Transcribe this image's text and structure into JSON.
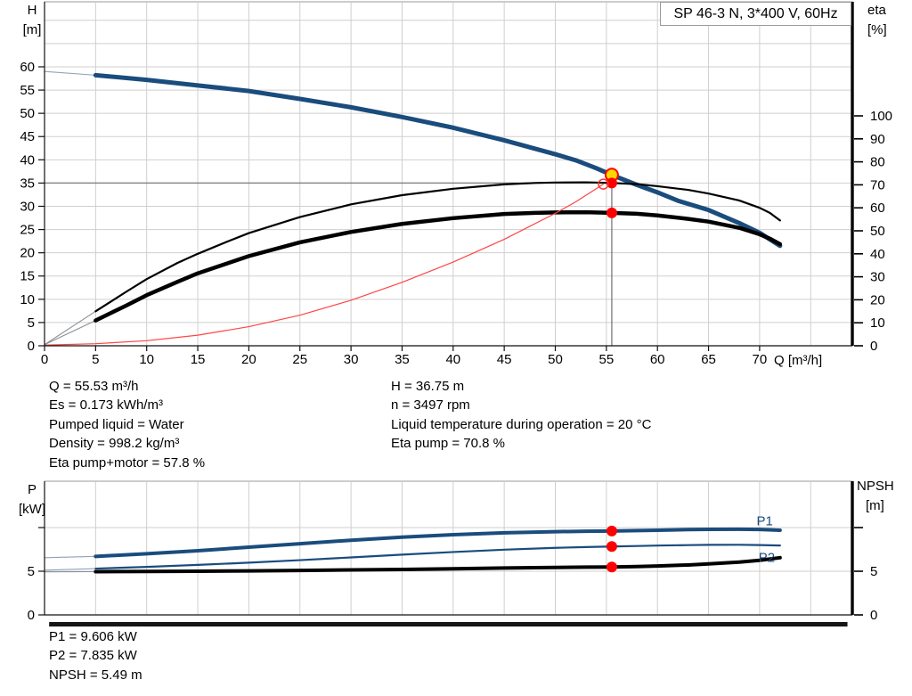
{
  "title_box": "SP 46-3 N, 3*400 V, 60Hz",
  "axis_display": {
    "h": "H",
    "h_unit": "[m]",
    "eta": "eta",
    "eta_unit": "[%]",
    "q": "Q [m³/h]",
    "p": "P",
    "p_unit": "[kW]",
    "npsh": "NPSH",
    "npsh_unit": "[m]"
  },
  "info_top_left": [
    "Q = 55.53 m³/h",
    "Es = 0.173 kWh/m³",
    "Pumped liquid = Water",
    "Density = 998.2 kg/m³",
    "Eta pump+motor = 57.8 %"
  ],
  "info_top_right": [
    "H = 36.75 m",
    "n = 3497 rpm",
    "Liquid temperature during operation = 20 °C",
    "Eta pump = 70.8 %"
  ],
  "info_bottom": [
    "P1 = 9.606 kW",
    "P2 = 7.835 kW",
    "NPSH = 5.49 m"
  ],
  "colors": {
    "curve_blue": "#1a4c7d",
    "curve_black": "#000000",
    "curve_red": "#ff4444",
    "marker_red": "#ff0000",
    "ring_red": "#ff3333",
    "duty_yellow": "#ffd700",
    "grid": "#cfcfcf",
    "crosshair": "#707070",
    "lead_gray": "#8a8f96",
    "lead_blue": "#8da3b8",
    "frame": "#9a9a9a"
  },
  "chart_data": [
    {
      "type": "line",
      "name": "hq-eta-chart",
      "title": "SP 46-3 N, 3*400 V, 60Hz",
      "xlabel": "Q [m³/h]",
      "ylabel_left": "H [m]",
      "ylabel_right": "eta [%]",
      "xlim": [
        0,
        79
      ],
      "ylim_left": [
        0,
        74
      ],
      "ylim_right": [
        0,
        100
      ],
      "grid": true,
      "x_ticks": [
        0,
        5,
        10,
        15,
        20,
        25,
        30,
        35,
        40,
        45,
        50,
        55,
        60,
        65,
        70
      ],
      "grid_x": [
        5,
        10,
        15,
        20,
        25,
        30,
        35,
        40,
        45,
        50,
        55,
        60,
        65,
        70,
        75
      ],
      "y_ticks_left": [
        0,
        5,
        10,
        15,
        20,
        25,
        30,
        35,
        40,
        45,
        50,
        55,
        60
      ],
      "y_ticks_right": [
        0,
        10,
        20,
        30,
        40,
        50,
        60,
        70,
        80,
        90,
        100
      ],
      "grid_y_left": [
        5,
        10,
        15,
        20,
        25,
        30,
        35,
        40,
        45,
        50,
        55,
        60,
        65,
        70
      ],
      "duty_point": {
        "Q": 55.53,
        "H": 36.75,
        "eta_pump": 70.8,
        "eta_pump_motor": 57.8,
        "Es": 0.173
      },
      "crosshair": {
        "q": 55.53,
        "h": 36.75,
        "eta": 70.8
      },
      "series": [
        {
          "name": "H pump curve",
          "dn": "h-curve",
          "axis": "left",
          "color_key": "curve_blue",
          "width": 5,
          "lead": [
            [
              0,
              59
            ],
            [
              5,
              58.2
            ]
          ],
          "points": [
            [
              5,
              58.2
            ],
            [
              10,
              57.2
            ],
            [
              15,
              56.0
            ],
            [
              20,
              54.8
            ],
            [
              25,
              53.1
            ],
            [
              30,
              51.3
            ],
            [
              35,
              49.2
            ],
            [
              40,
              46.9
            ],
            [
              45,
              44.2
            ],
            [
              50,
              41.2
            ],
            [
              52,
              39.9
            ],
            [
              54,
              38.2
            ],
            [
              55.53,
              36.75
            ],
            [
              58,
              34.6
            ],
            [
              60,
              33.0
            ],
            [
              62,
              31.2
            ],
            [
              65,
              29.2
            ],
            [
              68,
              26.4
            ],
            [
              70,
              24.3
            ],
            [
              72,
              21.5
            ]
          ]
        },
        {
          "name": "eta pump",
          "dn": "eta-pump-curve",
          "axis": "right",
          "color_key": "curve_black",
          "width": 2.2,
          "lead": [
            [
              0,
              0.5
            ],
            [
              5,
              15
            ]
          ],
          "points": [
            [
              5,
              15
            ],
            [
              8,
              23.5
            ],
            [
              10,
              29
            ],
            [
              13,
              36
            ],
            [
              15,
              40
            ],
            [
              18,
              45.5
            ],
            [
              20,
              49
            ],
            [
              25,
              56
            ],
            [
              30,
              61.5
            ],
            [
              35,
              65.5
            ],
            [
              40,
              68.3
            ],
            [
              45,
              70.2
            ],
            [
              48,
              70.8
            ],
            [
              50,
              71
            ],
            [
              53,
              71.1
            ],
            [
              55.53,
              70.8
            ],
            [
              58,
              70.3
            ],
            [
              60,
              69.4
            ],
            [
              63,
              67.8
            ],
            [
              65,
              66.2
            ],
            [
              68,
              63.2
            ],
            [
              70,
              60
            ],
            [
              71,
              57.8
            ],
            [
              72,
              54.5
            ]
          ]
        },
        {
          "name": "eta pump+motor",
          "dn": "eta-pump-motor-curve",
          "axis": "right",
          "color_key": "curve_black",
          "width": 4.5,
          "lead": [
            [
              0,
              0.5
            ],
            [
              5,
              11
            ]
          ],
          "points": [
            [
              5,
              11
            ],
            [
              8,
              17.5
            ],
            [
              10,
              22
            ],
            [
              13,
              27.8
            ],
            [
              15,
              31.5
            ],
            [
              18,
              36
            ],
            [
              20,
              39
            ],
            [
              25,
              45
            ],
            [
              30,
              49.5
            ],
            [
              35,
              53
            ],
            [
              40,
              55.5
            ],
            [
              45,
              57.3
            ],
            [
              48,
              57.8
            ],
            [
              50,
              58
            ],
            [
              53,
              58.1
            ],
            [
              55.53,
              57.8
            ],
            [
              58,
              57.4
            ],
            [
              60,
              56.7
            ],
            [
              63,
              55.2
            ],
            [
              65,
              54
            ],
            [
              68,
              51.3
            ],
            [
              70,
              48.5
            ],
            [
              71,
              46.6
            ],
            [
              72,
              44.2
            ]
          ]
        },
        {
          "name": "Es",
          "dn": "es-curve",
          "axis": "right",
          "color_key": "curve_red",
          "width": 1.2,
          "points": [
            [
              0,
              0.3
            ],
            [
              5,
              0.9
            ],
            [
              10,
              2.2
            ],
            [
              15,
              4.6
            ],
            [
              20,
              8.3
            ],
            [
              25,
              13.3
            ],
            [
              30,
              19.8
            ],
            [
              35,
              27.6
            ],
            [
              40,
              36.4
            ],
            [
              45,
              46.3
            ],
            [
              50,
              57.6
            ],
            [
              52,
              62.6
            ],
            [
              54.7,
              70.3
            ]
          ]
        }
      ],
      "markers": [
        {
          "q": 55.53,
          "v": 36.75,
          "axis": "left",
          "style": "duty",
          "name": "duty-point-h-marker"
        },
        {
          "q": 55.53,
          "v": 70.8,
          "axis": "right",
          "style": "dot",
          "name": "duty-point-eta-pump-marker"
        },
        {
          "q": 55.53,
          "v": 57.8,
          "axis": "right",
          "style": "dot",
          "name": "duty-point-eta-total-marker"
        },
        {
          "q": 54.7,
          "v": 70.3,
          "axis": "right",
          "style": "ring",
          "name": "es-end-ring-marker"
        }
      ]
    },
    {
      "type": "line",
      "name": "p-npsh-chart",
      "xlabel": "",
      "ylabel_left": "P [kW]",
      "ylabel_right": "NPSH [m]",
      "xlim": [
        0,
        79
      ],
      "ylim_left": [
        0,
        15.3
      ],
      "ylim_right": [
        0,
        15.3
      ],
      "grid": true,
      "x_ticks": [],
      "grid_x": [
        5,
        10,
        15,
        20,
        25,
        30,
        35,
        40,
        45,
        50,
        55,
        60,
        65,
        70,
        75
      ],
      "y_ticks_left": [
        0,
        5,
        10
      ],
      "y_tick_labels_left": [
        "0",
        "5",
        ""
      ],
      "y_ticks_right": [
        0,
        5,
        10
      ],
      "y_tick_labels_right": [
        "0",
        "5",
        ""
      ],
      "grid_y_left": [
        5,
        10
      ],
      "duty_point": {
        "Q": 55.53,
        "P1": 9.606,
        "P2": 7.835,
        "NPSH": 5.49
      },
      "series": [
        {
          "name": "P1",
          "dn": "p1-curve",
          "axis": "left",
          "color_key": "curve_blue",
          "width": 4,
          "lead": [
            [
              0,
              6.55
            ],
            [
              5,
              6.7
            ]
          ],
          "label": {
            "text": "P1",
            "q": 69.7,
            "v": 10.25
          },
          "points": [
            [
              5,
              6.7
            ],
            [
              10,
              7.0
            ],
            [
              15,
              7.35
            ],
            [
              20,
              7.75
            ],
            [
              25,
              8.15
            ],
            [
              30,
              8.55
            ],
            [
              35,
              8.9
            ],
            [
              40,
              9.18
            ],
            [
              45,
              9.4
            ],
            [
              50,
              9.53
            ],
            [
              53,
              9.58
            ],
            [
              55.53,
              9.606
            ],
            [
              58,
              9.66
            ],
            [
              60,
              9.7
            ],
            [
              63,
              9.77
            ],
            [
              65,
              9.8
            ],
            [
              68,
              9.81
            ],
            [
              70,
              9.78
            ],
            [
              72,
              9.7
            ]
          ]
        },
        {
          "name": "P2",
          "dn": "p2-curve",
          "axis": "left",
          "color_key": "curve_blue",
          "width": 2.2,
          "lead": [
            [
              0,
              5.12
            ],
            [
              5,
              5.3
            ]
          ],
          "label": {
            "text": "P2",
            "q": 69.9,
            "v": 6.05
          },
          "points": [
            [
              5,
              5.3
            ],
            [
              10,
              5.5
            ],
            [
              15,
              5.73
            ],
            [
              20,
              5.98
            ],
            [
              25,
              6.27
            ],
            [
              30,
              6.58
            ],
            [
              35,
              6.9
            ],
            [
              40,
              7.2
            ],
            [
              45,
              7.47
            ],
            [
              50,
              7.68
            ],
            [
              53,
              7.77
            ],
            [
              55.53,
              7.835
            ],
            [
              58,
              7.89
            ],
            [
              60,
              7.94
            ],
            [
              63,
              7.99
            ],
            [
              65,
              8.02
            ],
            [
              68,
              8.03
            ],
            [
              70,
              8.0
            ],
            [
              72,
              7.95
            ]
          ]
        },
        {
          "name": "NPSH",
          "dn": "npsh-curve",
          "axis": "right",
          "color_key": "curve_black",
          "width": 4,
          "lead": [
            [
              0,
              4.93
            ],
            [
              5,
              4.95
            ]
          ],
          "points": [
            [
              5,
              4.95
            ],
            [
              10,
              4.97
            ],
            [
              15,
              5.0
            ],
            [
              20,
              5.04
            ],
            [
              25,
              5.09
            ],
            [
              30,
              5.15
            ],
            [
              35,
              5.21
            ],
            [
              40,
              5.28
            ],
            [
              45,
              5.37
            ],
            [
              50,
              5.44
            ],
            [
              53,
              5.47
            ],
            [
              55.53,
              5.49
            ],
            [
              58,
              5.54
            ],
            [
              60,
              5.6
            ],
            [
              63,
              5.72
            ],
            [
              65,
              5.84
            ],
            [
              68,
              6.05
            ],
            [
              70,
              6.25
            ],
            [
              72,
              6.55
            ]
          ]
        }
      ],
      "markers": [
        {
          "q": 55.53,
          "v": 9.606,
          "axis": "left",
          "style": "dot",
          "name": "duty-point-p1-marker"
        },
        {
          "q": 55.53,
          "v": 7.835,
          "axis": "left",
          "style": "dot",
          "name": "duty-point-p2-marker"
        },
        {
          "q": 55.53,
          "v": 5.49,
          "axis": "right",
          "style": "dot",
          "name": "duty-point-npsh-marker"
        }
      ],
      "range_bar": {
        "q0": 0.45,
        "q1": 78.6
      }
    }
  ]
}
